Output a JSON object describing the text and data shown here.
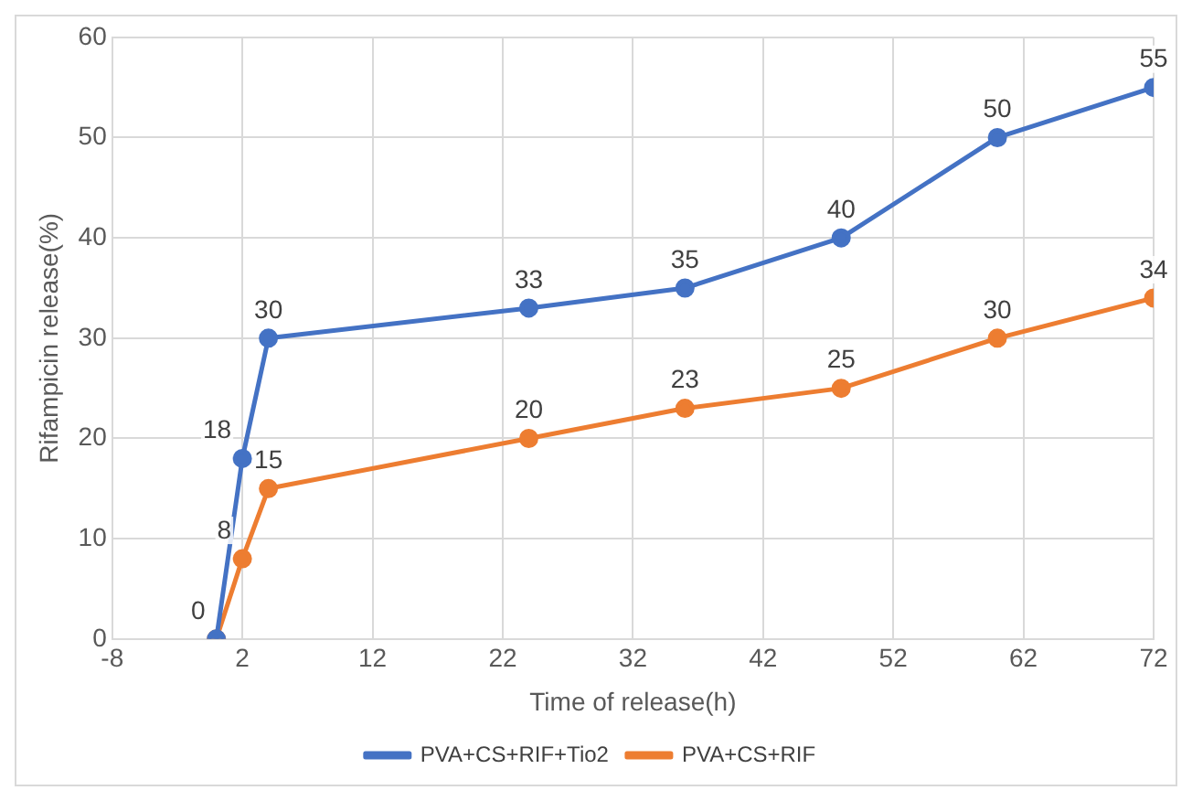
{
  "chart_data": {
    "type": "line",
    "xlabel": "Time of release(h)",
    "ylabel": "Rifampicin release(%)",
    "x": [
      0,
      2,
      4,
      24,
      36,
      48,
      60,
      72
    ],
    "series": [
      {
        "name": "PVA+CS+RIF+Tio2",
        "color": "#4472c4",
        "values": [
          0,
          18,
          30,
          33,
          35,
          40,
          50,
          55
        ],
        "value_labels": [
          "0",
          "18",
          "30",
          "33",
          "35",
          "40",
          "50",
          "55"
        ]
      },
      {
        "name": "PVA+CS+RIF",
        "color": "#ed7d31",
        "values": [
          0,
          8,
          15,
          20,
          23,
          25,
          30,
          34
        ],
        "value_labels": [
          null,
          "8",
          "15",
          "20",
          "23",
          "25",
          "30",
          "34"
        ]
      }
    ],
    "xlim": [
      -8,
      72
    ],
    "xticks": [
      -8,
      2,
      12,
      22,
      32,
      42,
      52,
      62,
      72
    ],
    "ylim": [
      0,
      60
    ],
    "yticks": [
      0,
      10,
      20,
      30,
      40,
      50,
      60
    ],
    "grid": true,
    "legend": "bottom",
    "marker": "circle",
    "line_style": "solid"
  }
}
